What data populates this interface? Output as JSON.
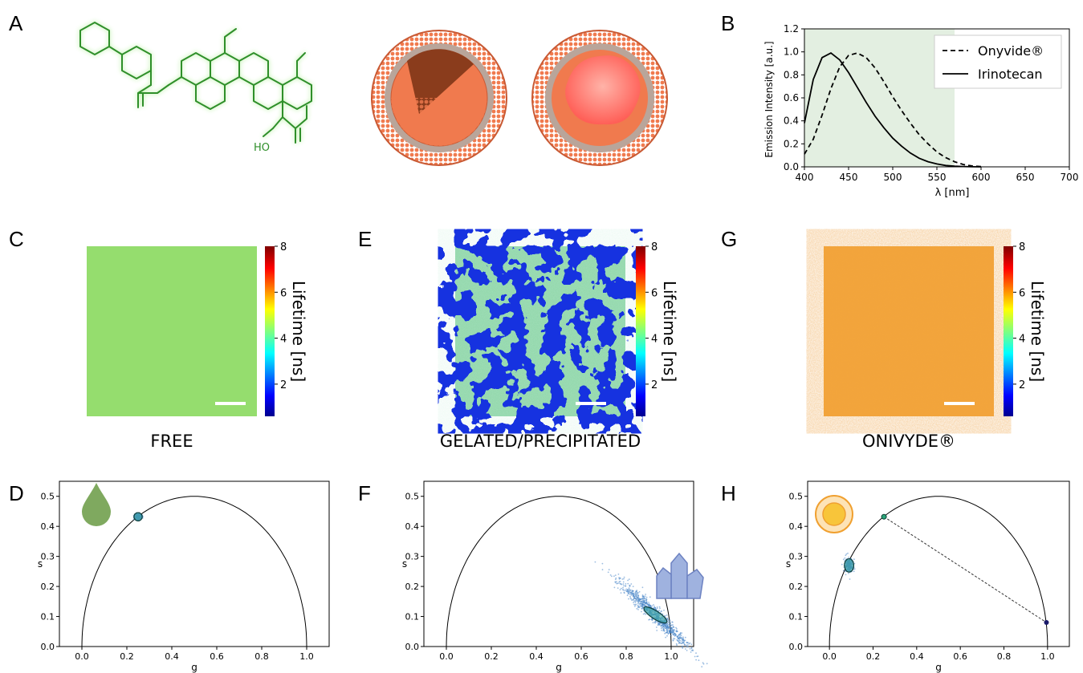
{
  "panels": {
    "A": "A",
    "B": "B",
    "C": "C",
    "D": "D",
    "E": "E",
    "F": "F",
    "G": "G",
    "H": "H"
  },
  "molecule": {
    "ho_label": "HO"
  },
  "captions": {
    "free": "FREE",
    "gelated": "GELATED/PRECIPITATED",
    "onivyde": "ONIVYDE®"
  },
  "colorbar": {
    "title": "Lifetime [ns]",
    "ticks": [
      "2",
      "4",
      "6",
      "8"
    ],
    "range": [
      0.6,
      8
    ]
  },
  "colors": {
    "free_image": "#95dd6e",
    "shaded_band": "#e3efe1",
    "liposome": "#f07a4e",
    "core_precipitate": "#8a3c1c",
    "core_gel": "#ff7d75",
    "glow": "#9de36b",
    "precip_blue": "#1633e0",
    "precip_green": "#8fd6a8",
    "onivyde_orange": "#f4a63a",
    "phasor_scatter": "#4a86c8"
  },
  "chart_data": [
    {
      "panel": "B",
      "type": "line",
      "xlabel": "λ [nm]",
      "ylabel": "Emission Intensity [a.u.]",
      "xlim": [
        400,
        700
      ],
      "ylim": [
        0,
        1.2
      ],
      "xticks": [
        "400",
        "450",
        "500",
        "550",
        "600",
        "650",
        "700"
      ],
      "yticks": [
        "0.0",
        "0.2",
        "0.4",
        "0.6",
        "0.8",
        "1.0",
        "1.2"
      ],
      "shaded_region": [
        400,
        570
      ],
      "legend": "top-right",
      "series": [
        {
          "name": "Onyvide®",
          "style": "dashed",
          "x": [
            400,
            410,
            420,
            430,
            440,
            450,
            460,
            470,
            480,
            490,
            500,
            510,
            520,
            530,
            540,
            550,
            560,
            570,
            580,
            590,
            600
          ],
          "y": [
            0.11,
            0.24,
            0.45,
            0.68,
            0.87,
            0.97,
            0.99,
            0.95,
            0.86,
            0.74,
            0.61,
            0.49,
            0.38,
            0.28,
            0.2,
            0.13,
            0.08,
            0.045,
            0.02,
            0.008,
            0.003
          ]
        },
        {
          "name": "Irinotecan",
          "style": "solid",
          "x": [
            400,
            410,
            420,
            430,
            440,
            450,
            460,
            470,
            480,
            490,
            500,
            510,
            520,
            530,
            540,
            550,
            560,
            570,
            580,
            590,
            600
          ],
          "y": [
            0.38,
            0.76,
            0.95,
            0.99,
            0.93,
            0.82,
            0.69,
            0.56,
            0.44,
            0.34,
            0.25,
            0.18,
            0.12,
            0.075,
            0.045,
            0.025,
            0.012,
            0.006,
            0.003,
            0.001,
            0.0
          ]
        }
      ]
    },
    {
      "panel": "D",
      "type": "scatter",
      "xlabel": "g",
      "ylabel": "s",
      "xlim": [
        -0.1,
        1.1
      ],
      "ylim": [
        0,
        0.55
      ],
      "xticks": [
        "0.0",
        "0.2",
        "0.4",
        "0.6",
        "0.8",
        "1.0"
      ],
      "yticks": [
        "0.0",
        "0.1",
        "0.2",
        "0.3",
        "0.4",
        "0.5"
      ],
      "clusters": [
        {
          "g": 0.25,
          "s": 0.432,
          "spread_g": 0.008,
          "spread_s": 0.006,
          "n": 220
        }
      ]
    },
    {
      "panel": "F",
      "type": "scatter",
      "xlabel": "g",
      "ylabel": "s",
      "xlim": [
        -0.1,
        1.1
      ],
      "ylim": [
        0,
        0.55
      ],
      "xticks": [
        "0.0",
        "0.2",
        "0.4",
        "0.6",
        "0.8",
        "1.0"
      ],
      "yticks": [
        "0.0",
        "0.1",
        "0.2",
        "0.3",
        "0.4",
        "0.5"
      ],
      "clusters": [
        {
          "g": 0.93,
          "s": 0.105,
          "spread_g": 0.06,
          "spread_s": 0.04,
          "n": 900
        }
      ]
    },
    {
      "panel": "H",
      "type": "scatter",
      "xlabel": "g",
      "ylabel": "s",
      "xlim": [
        -0.1,
        1.1
      ],
      "ylim": [
        0,
        0.55
      ],
      "xticks": [
        "0.0",
        "0.2",
        "0.4",
        "0.6",
        "0.8",
        "1.0"
      ],
      "yticks": [
        "0.0",
        "0.1",
        "0.2",
        "0.3",
        "0.4",
        "0.5"
      ],
      "clusters": [
        {
          "g": 0.09,
          "s": 0.27,
          "spread_g": 0.01,
          "spread_s": 0.012,
          "n": 260
        }
      ],
      "line_points": [
        {
          "g": 0.25,
          "s": 0.432
        },
        {
          "g": 0.995,
          "s": 0.08
        }
      ]
    }
  ]
}
